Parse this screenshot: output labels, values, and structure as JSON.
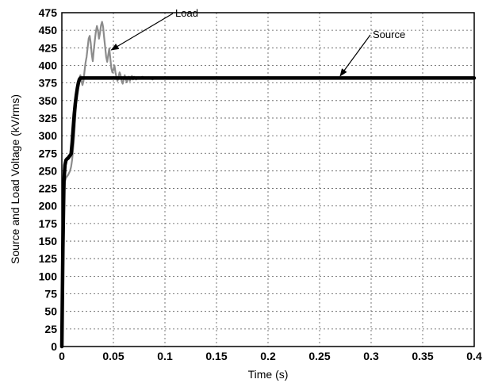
{
  "chart_data": {
    "type": "line",
    "xlabel": "Time (s)",
    "ylabel": "Source and Load Voltage (kV/rms)",
    "xlim": [
      0,
      0.4
    ],
    "ylim": [
      0,
      475
    ],
    "x_ticks": [
      "0",
      "0.05",
      "0.1",
      "0.15",
      "0.2",
      "0.25",
      "0.3",
      "0.35",
      "0.4"
    ],
    "y_ticks": [
      "0",
      "25",
      "50",
      "75",
      "100",
      "125",
      "150",
      "175",
      "200",
      "225",
      "250",
      "275",
      "300",
      "325",
      "350",
      "375",
      "400",
      "425",
      "450",
      "475"
    ],
    "grid": true,
    "series": [
      {
        "name": "Load",
        "color": "#8c8c8c",
        "x": [
          0,
          0.001,
          0.002,
          0.003,
          0.004,
          0.005,
          0.006,
          0.007,
          0.008,
          0.009,
          0.01,
          0.011,
          0.012,
          0.013,
          0.014,
          0.015,
          0.016,
          0.017,
          0.018,
          0.019,
          0.02,
          0.021,
          0.022,
          0.023,
          0.024,
          0.025,
          0.026,
          0.027,
          0.028,
          0.029,
          0.03,
          0.031,
          0.032,
          0.033,
          0.034,
          0.035,
          0.036,
          0.037,
          0.038,
          0.039,
          0.04,
          0.041,
          0.042,
          0.043,
          0.044,
          0.045,
          0.046,
          0.047,
          0.048,
          0.049,
          0.05,
          0.051,
          0.052,
          0.053,
          0.054,
          0.055,
          0.056,
          0.057,
          0.058,
          0.059,
          0.06,
          0.061,
          0.062,
          0.063,
          0.064,
          0.065,
          0.066,
          0.067,
          0.068,
          0.069,
          0.07,
          0.072,
          0.074,
          0.076,
          0.078,
          0.08,
          0.082,
          0.084,
          0.086,
          0.088,
          0.09,
          0.093,
          0.096,
          0.1
        ],
        "values": [
          0,
          110,
          200,
          235,
          240,
          242,
          244,
          247,
          250,
          256,
          266,
          282,
          300,
          325,
          350,
          368,
          378,
          382,
          386,
          378,
          372,
          378,
          392,
          404,
          412,
          425,
          438,
          442,
          432,
          416,
          406,
          422,
          436,
          448,
          456,
          450,
          438,
          446,
          457,
          462,
          455,
          440,
          426,
          412,
          405,
          415,
          424,
          410,
          396,
          390,
          394,
          400,
          390,
          383,
          378,
          384,
          390,
          386,
          378,
          374,
          380,
          386,
          380,
          376,
          381,
          384,
          378,
          382,
          385,
          380,
          384,
          380,
          383,
          381,
          384,
          382,
          381,
          383,
          382,
          380,
          383,
          382,
          381,
          382
        ]
      },
      {
        "name": "Source",
        "color": "#000000",
        "x": [
          0,
          0.001,
          0.002,
          0.003,
          0.004,
          0.005,
          0.006,
          0.007,
          0.008,
          0.009,
          0.01,
          0.011,
          0.012,
          0.013,
          0.014,
          0.015,
          0.016,
          0.017,
          0.018,
          0.019,
          0.02,
          0.022,
          0.025,
          0.05,
          0.1,
          0.2,
          0.3,
          0.4
        ],
        "values": [
          0,
          140,
          235,
          258,
          265,
          267,
          268,
          270,
          272,
          274,
          290,
          310,
          330,
          345,
          357,
          367,
          375,
          380,
          382,
          382,
          382,
          382,
          382,
          382,
          382,
          382,
          382,
          382
        ]
      }
    ],
    "annotations": [
      {
        "text": "Load",
        "target": [
          0.048,
          422
        ]
      },
      {
        "text": "Source",
        "target": [
          0.27,
          385
        ]
      }
    ]
  }
}
